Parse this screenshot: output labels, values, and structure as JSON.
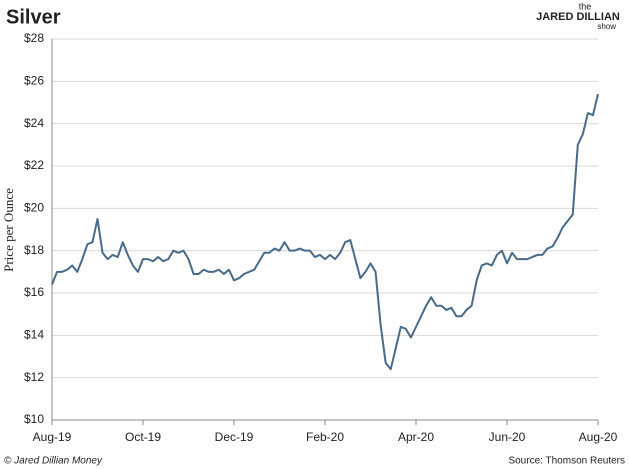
{
  "chart_data": {
    "type": "line",
    "title": "Silver",
    "y_label": "Price per Ounce",
    "footer_left": "© Jared Dillian Money",
    "source": "Source: Thomson Reuters",
    "logo": {
      "top": "the",
      "main": "JARED DILLIAN",
      "bottom": "show"
    },
    "categories": [
      "Aug-19",
      null,
      null,
      null,
      null,
      null,
      null,
      null,
      null,
      null,
      null,
      null,
      null,
      null,
      null,
      null,
      null,
      null,
      "Oct-19",
      null,
      null,
      null,
      null,
      null,
      null,
      null,
      null,
      null,
      null,
      null,
      null,
      null,
      null,
      null,
      null,
      null,
      "Dec-19",
      null,
      null,
      null,
      null,
      null,
      null,
      null,
      null,
      null,
      null,
      null,
      null,
      null,
      null,
      null,
      null,
      null,
      "Feb-20",
      null,
      null,
      null,
      null,
      null,
      null,
      null,
      null,
      null,
      null,
      null,
      null,
      null,
      null,
      null,
      null,
      null,
      "Apr-20",
      null,
      null,
      null,
      null,
      null,
      null,
      null,
      null,
      null,
      null,
      null,
      null,
      null,
      null,
      null,
      null,
      null,
      "Jun-20",
      null,
      null,
      null,
      null,
      null,
      null,
      null,
      null,
      null,
      null,
      null,
      null,
      null,
      null,
      null,
      null,
      null,
      "Aug-20"
    ],
    "values": [
      16.4,
      17.0,
      17.0,
      17.1,
      17.3,
      17.0,
      17.6,
      18.3,
      18.4,
      19.5,
      17.9,
      17.6,
      17.8,
      17.7,
      18.4,
      17.8,
      17.3,
      17.0,
      17.6,
      17.6,
      17.5,
      17.7,
      17.5,
      17.6,
      18.0,
      17.9,
      18.0,
      17.6,
      16.9,
      16.9,
      17.1,
      17.0,
      17.0,
      17.1,
      16.9,
      17.1,
      16.6,
      16.7,
      16.9,
      17.0,
      17.1,
      17.5,
      17.9,
      17.9,
      18.1,
      18.0,
      18.4,
      18.0,
      18.0,
      18.1,
      18.0,
      18.0,
      17.7,
      17.8,
      17.6,
      17.8,
      17.6,
      17.9,
      18.4,
      18.5,
      17.6,
      16.7,
      17.0,
      17.4,
      17.0,
      14.5,
      12.7,
      12.4,
      13.4,
      14.4,
      14.3,
      13.9,
      14.4,
      14.9,
      15.4,
      15.8,
      15.4,
      15.4,
      15.2,
      15.3,
      14.9,
      14.9,
      15.2,
      15.4,
      16.6,
      17.3,
      17.4,
      17.3,
      17.8,
      18.0,
      17.4,
      17.9,
      17.6,
      17.6,
      17.6,
      17.7,
      17.8,
      17.8,
      18.1,
      18.2,
      18.6,
      19.1,
      19.4,
      19.7,
      23.0,
      23.5,
      24.5,
      24.4,
      25.4
    ],
    "color": "#4a6a8a",
    "ylim": [
      10,
      28
    ],
    "yticks": [
      {
        "value": 10,
        "label": "$10"
      },
      {
        "value": 12,
        "label": "$12"
      },
      {
        "value": 14,
        "label": "$14"
      },
      {
        "value": 16,
        "label": "$16"
      },
      {
        "value": 18,
        "label": "$18"
      },
      {
        "value": 20,
        "label": "$20"
      },
      {
        "value": 22,
        "label": "$22"
      },
      {
        "value": 24,
        "label": "$24"
      },
      {
        "value": 26,
        "label": "$26"
      },
      {
        "value": 28,
        "label": "$28"
      }
    ],
    "grid": true
  }
}
